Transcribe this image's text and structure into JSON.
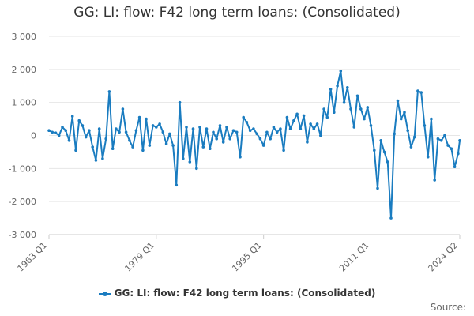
{
  "colors": {
    "series": "#1a7cc0",
    "grid": "#e6e6e6",
    "axis_text": "#666666"
  },
  "chart_data": {
    "type": "line",
    "title": "GG: LI: flow: F42 long term loans: (Consolidated)",
    "xlabel": "",
    "ylabel": "",
    "ylim": [
      -3000,
      3000
    ],
    "y_ticks": [
      3000,
      2000,
      1000,
      0,
      -1000,
      -2000,
      -3000
    ],
    "y_tick_labels": [
      "3 000",
      "2 000",
      "1 000",
      "0",
      "-1 000",
      "-2 000",
      "-3 000"
    ],
    "x_ticks": [
      "1963 Q1",
      "1979 Q1",
      "1995 Q1",
      "2011 Q1",
      "2024 Q2"
    ],
    "grid": true,
    "legend_position": "bottom",
    "series": [
      {
        "name": "GG: LI: flow: F42 long term loans: (Consolidated)",
        "color": "#1a7cc0",
        "points": [
          [
            "1963 Q1",
            150
          ],
          [
            "1963 Q3",
            100
          ],
          [
            "1964 Q1",
            80
          ],
          [
            "1964 Q3",
            0
          ],
          [
            "1965 Q1",
            250
          ],
          [
            "1965 Q3",
            150
          ],
          [
            "1966 Q1",
            -150
          ],
          [
            "1966 Q3",
            580
          ],
          [
            "1967 Q1",
            -450
          ],
          [
            "1967 Q3",
            450
          ],
          [
            "1968 Q1",
            300
          ],
          [
            "1968 Q3",
            -50
          ],
          [
            "1969 Q1",
            150
          ],
          [
            "1969 Q3",
            -350
          ],
          [
            "1970 Q1",
            -750
          ],
          [
            "1970 Q3",
            200
          ],
          [
            "1971 Q1",
            -700
          ],
          [
            "1971 Q3",
            -100
          ],
          [
            "1972 Q1",
            1330
          ],
          [
            "1972 Q3",
            -400
          ],
          [
            "1973 Q1",
            200
          ],
          [
            "1973 Q3",
            100
          ],
          [
            "1974 Q1",
            800
          ],
          [
            "1974 Q3",
            100
          ],
          [
            "1975 Q1",
            -150
          ],
          [
            "1975 Q3",
            -350
          ],
          [
            "1976 Q1",
            150
          ],
          [
            "1976 Q3",
            550
          ],
          [
            "1977 Q1",
            -450
          ],
          [
            "1977 Q3",
            500
          ],
          [
            "1978 Q1",
            -300
          ],
          [
            "1978 Q3",
            300
          ],
          [
            "1979 Q1",
            250
          ],
          [
            "1979 Q3",
            350
          ],
          [
            "1980 Q1",
            100
          ],
          [
            "1980 Q3",
            -250
          ],
          [
            "1981 Q1",
            50
          ],
          [
            "1981 Q3",
            -300
          ],
          [
            "1982 Q1",
            -1500
          ],
          [
            "1982 Q3",
            1000
          ],
          [
            "1983 Q1",
            -700
          ],
          [
            "1983 Q3",
            250
          ],
          [
            "1984 Q1",
            -800
          ],
          [
            "1984 Q3",
            200
          ],
          [
            "1985 Q1",
            -1000
          ],
          [
            "1985 Q3",
            250
          ],
          [
            "1986 Q1",
            -350
          ],
          [
            "1986 Q3",
            200
          ],
          [
            "1987 Q1",
            -400
          ],
          [
            "1987 Q3",
            100
          ],
          [
            "1988 Q1",
            -100
          ],
          [
            "1988 Q3",
            300
          ],
          [
            "1989 Q1",
            -200
          ],
          [
            "1989 Q3",
            250
          ],
          [
            "1990 Q1",
            -100
          ],
          [
            "1990 Q3",
            150
          ],
          [
            "1991 Q1",
            100
          ],
          [
            "1991 Q3",
            -650
          ],
          [
            "1992 Q1",
            550
          ],
          [
            "1992 Q3",
            400
          ],
          [
            "1993 Q1",
            150
          ],
          [
            "1993 Q3",
            200
          ],
          [
            "1994 Q1",
            50
          ],
          [
            "1994 Q3",
            -100
          ],
          [
            "1995 Q1",
            -300
          ],
          [
            "1995 Q3",
            100
          ],
          [
            "1996 Q1",
            -100
          ],
          [
            "1996 Q3",
            250
          ],
          [
            "1997 Q1",
            100
          ],
          [
            "1997 Q3",
            200
          ],
          [
            "1998 Q1",
            -450
          ],
          [
            "1998 Q3",
            550
          ],
          [
            "1999 Q1",
            200
          ],
          [
            "1999 Q3",
            450
          ],
          [
            "2000 Q1",
            650
          ],
          [
            "2000 Q3",
            200
          ],
          [
            "2001 Q1",
            600
          ],
          [
            "2001 Q3",
            -200
          ],
          [
            "2002 Q1",
            350
          ],
          [
            "2002 Q3",
            200
          ],
          [
            "2003 Q1",
            350
          ],
          [
            "2003 Q3",
            0
          ],
          [
            "2004 Q1",
            800
          ],
          [
            "2004 Q3",
            550
          ],
          [
            "2005 Q1",
            1400
          ],
          [
            "2005 Q3",
            700
          ],
          [
            "2006 Q1",
            1500
          ],
          [
            "2006 Q3",
            1950
          ],
          [
            "2007 Q1",
            1000
          ],
          [
            "2007 Q3",
            1450
          ],
          [
            "2008 Q1",
            800
          ],
          [
            "2008 Q3",
            250
          ],
          [
            "2009 Q1",
            1200
          ],
          [
            "2009 Q3",
            800
          ],
          [
            "2010 Q1",
            500
          ],
          [
            "2010 Q3",
            850
          ],
          [
            "2011 Q1",
            300
          ],
          [
            "2011 Q3",
            -450
          ],
          [
            "2012 Q1",
            -1600
          ],
          [
            "2012 Q3",
            -150
          ],
          [
            "2013 Q1",
            -500
          ],
          [
            "2013 Q3",
            -800
          ],
          [
            "2014 Q1",
            -2500
          ],
          [
            "2014 Q3",
            50
          ],
          [
            "2015 Q1",
            1050
          ],
          [
            "2015 Q3",
            500
          ],
          [
            "2016 Q1",
            700
          ],
          [
            "2016 Q3",
            150
          ],
          [
            "2017 Q1",
            -350
          ],
          [
            "2017 Q3",
            -50
          ],
          [
            "2018 Q1",
            1350
          ],
          [
            "2018 Q3",
            1300
          ],
          [
            "2019 Q1",
            300
          ],
          [
            "2019 Q3",
            -650
          ],
          [
            "2020 Q1",
            500
          ],
          [
            "2020 Q3",
            -1350
          ],
          [
            "2021 Q1",
            -100
          ],
          [
            "2021 Q3",
            -150
          ],
          [
            "2022 Q1",
            0
          ],
          [
            "2022 Q3",
            -300
          ],
          [
            "2023 Q1",
            -400
          ],
          [
            "2023 Q3",
            -950
          ],
          [
            "2024 Q1",
            -550
          ],
          [
            "2024 Q2",
            -150
          ]
        ]
      }
    ]
  },
  "footer": {
    "source_label": "Source:"
  }
}
